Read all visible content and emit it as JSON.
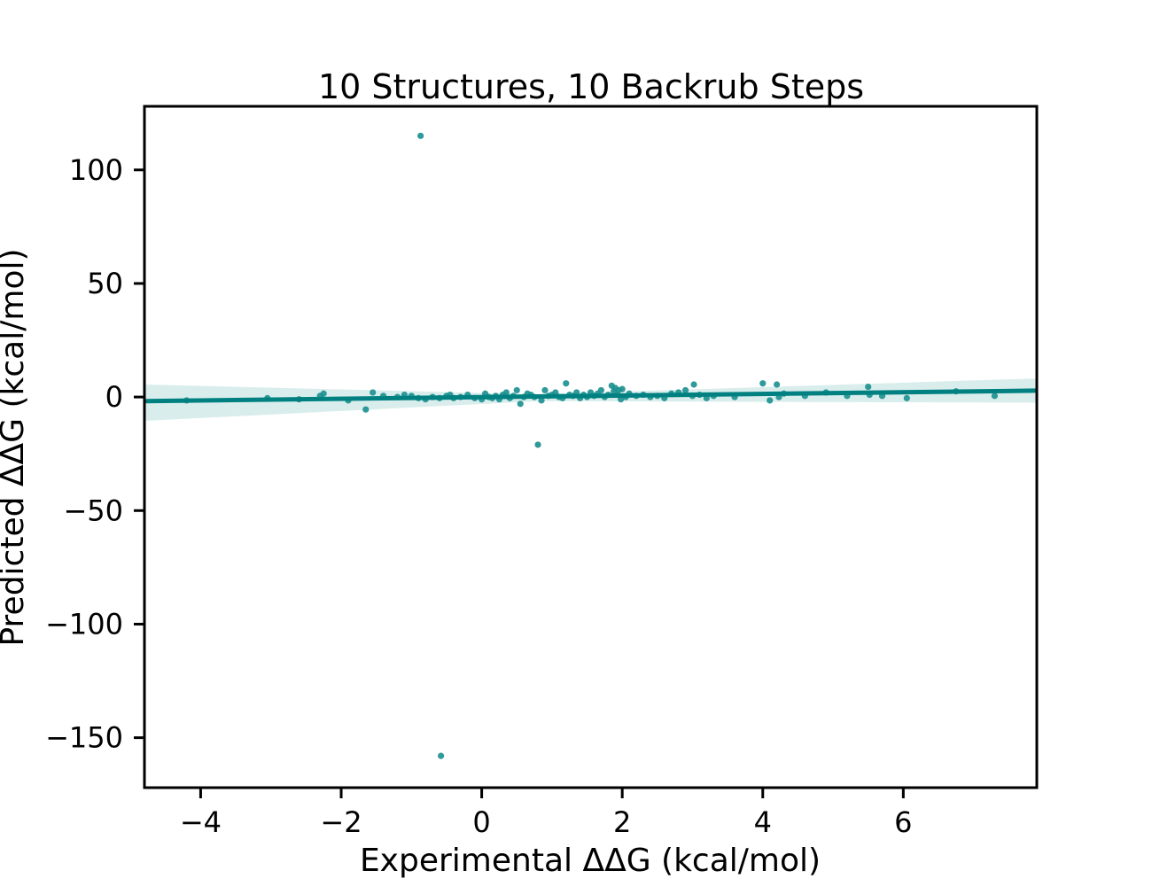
{
  "chart_data": {
    "type": "scatter",
    "title": "10 Structures, 10 Backrub Steps",
    "xlabel": "Experimental ΔΔG (kcal/mol)",
    "ylabel": "Predicted ΔΔG (kcal/mol)",
    "xlim": [
      -4.8,
      7.9
    ],
    "ylim": [
      -172,
      128
    ],
    "xticks": [
      -4,
      -2,
      0,
      2,
      4,
      6
    ],
    "xtick_labels": [
      "−4",
      "−2",
      "0",
      "2",
      "4",
      "6"
    ],
    "yticks": [
      -150,
      -100,
      -50,
      0,
      50,
      100
    ],
    "ytick_labels": [
      "−150",
      "−100",
      "−50",
      "0",
      "50",
      "100"
    ],
    "grid": false,
    "colors": {
      "points": "#1a8f8f",
      "line": "#008080",
      "band": "#cfe9e7",
      "axes": "#000000"
    },
    "regression": {
      "x": [
        -4.8,
        7.9
      ],
      "y": [
        -1.8,
        2.8
      ]
    },
    "confidence_band": {
      "x": [
        -4.8,
        0.8,
        7.9
      ],
      "upper": [
        5.5,
        1.2,
        8.2
      ],
      "lower": [
        -10.5,
        -1.8,
        -2.5
      ]
    },
    "points": {
      "x": [
        -0.87,
        -0.58,
        0.8,
        -1.65,
        -4.2,
        -3.05,
        -2.6,
        -2.25,
        -2.3,
        -1.9,
        -1.55,
        -1.4,
        -1.2,
        -1.1,
        -1.0,
        -0.9,
        -0.8,
        -0.7,
        -0.6,
        -0.5,
        -0.45,
        -0.4,
        -0.3,
        -0.2,
        -0.1,
        0.0,
        0.05,
        0.1,
        0.15,
        0.2,
        0.25,
        0.3,
        0.35,
        0.4,
        0.45,
        0.5,
        0.55,
        0.6,
        0.65,
        0.7,
        0.75,
        0.85,
        0.9,
        0.95,
        1.0,
        1.05,
        1.1,
        1.15,
        1.2,
        1.25,
        1.3,
        1.35,
        1.4,
        1.45,
        1.5,
        1.55,
        1.6,
        1.65,
        1.7,
        1.75,
        1.8,
        1.85,
        1.88,
        1.9,
        1.93,
        1.95,
        1.98,
        2.0,
        2.05,
        2.1,
        2.2,
        2.3,
        2.4,
        2.5,
        2.6,
        2.7,
        2.8,
        2.9,
        3.0,
        3.02,
        3.1,
        3.2,
        3.3,
        3.6,
        4.0,
        4.1,
        4.2,
        4.23,
        4.3,
        4.6,
        4.9,
        5.2,
        5.5,
        5.52,
        5.7,
        6.05,
        6.75,
        7.3
      ],
      "y": [
        115,
        -158,
        -21,
        -5.5,
        -1.5,
        -0.5,
        -1.0,
        1.5,
        0.5,
        -1.5,
        2.0,
        0.5,
        0.0,
        1.0,
        0.5,
        -0.5,
        -1.0,
        0.0,
        -0.5,
        0.5,
        1.0,
        -0.5,
        0.0,
        1.0,
        -0.5,
        -1.0,
        1.5,
        0.0,
        -0.5,
        0.5,
        -1.0,
        1.0,
        2.0,
        -0.5,
        0.5,
        3.0,
        -3.0,
        0.0,
        1.5,
        1.0,
        0.0,
        -1.5,
        3.0,
        0.5,
        1.0,
        2.0,
        0.0,
        -0.5,
        6.0,
        1.0,
        0.5,
        2.0,
        -0.5,
        1.0,
        0.0,
        2.0,
        0.5,
        1.5,
        3.0,
        0.0,
        1.0,
        5.0,
        2.5,
        4.0,
        1.0,
        3.0,
        -1.0,
        3.5,
        0.0,
        1.5,
        0.5,
        1.0,
        0.0,
        0.5,
        -0.5,
        1.5,
        2.0,
        3.0,
        0.5,
        5.5,
        1.0,
        -0.5,
        0.5,
        0.0,
        6.0,
        -1.5,
        5.5,
        0.0,
        1.5,
        0.5,
        2.0,
        0.5,
        4.5,
        1.0,
        0.5,
        -0.5,
        2.5,
        0.5
      ]
    }
  }
}
